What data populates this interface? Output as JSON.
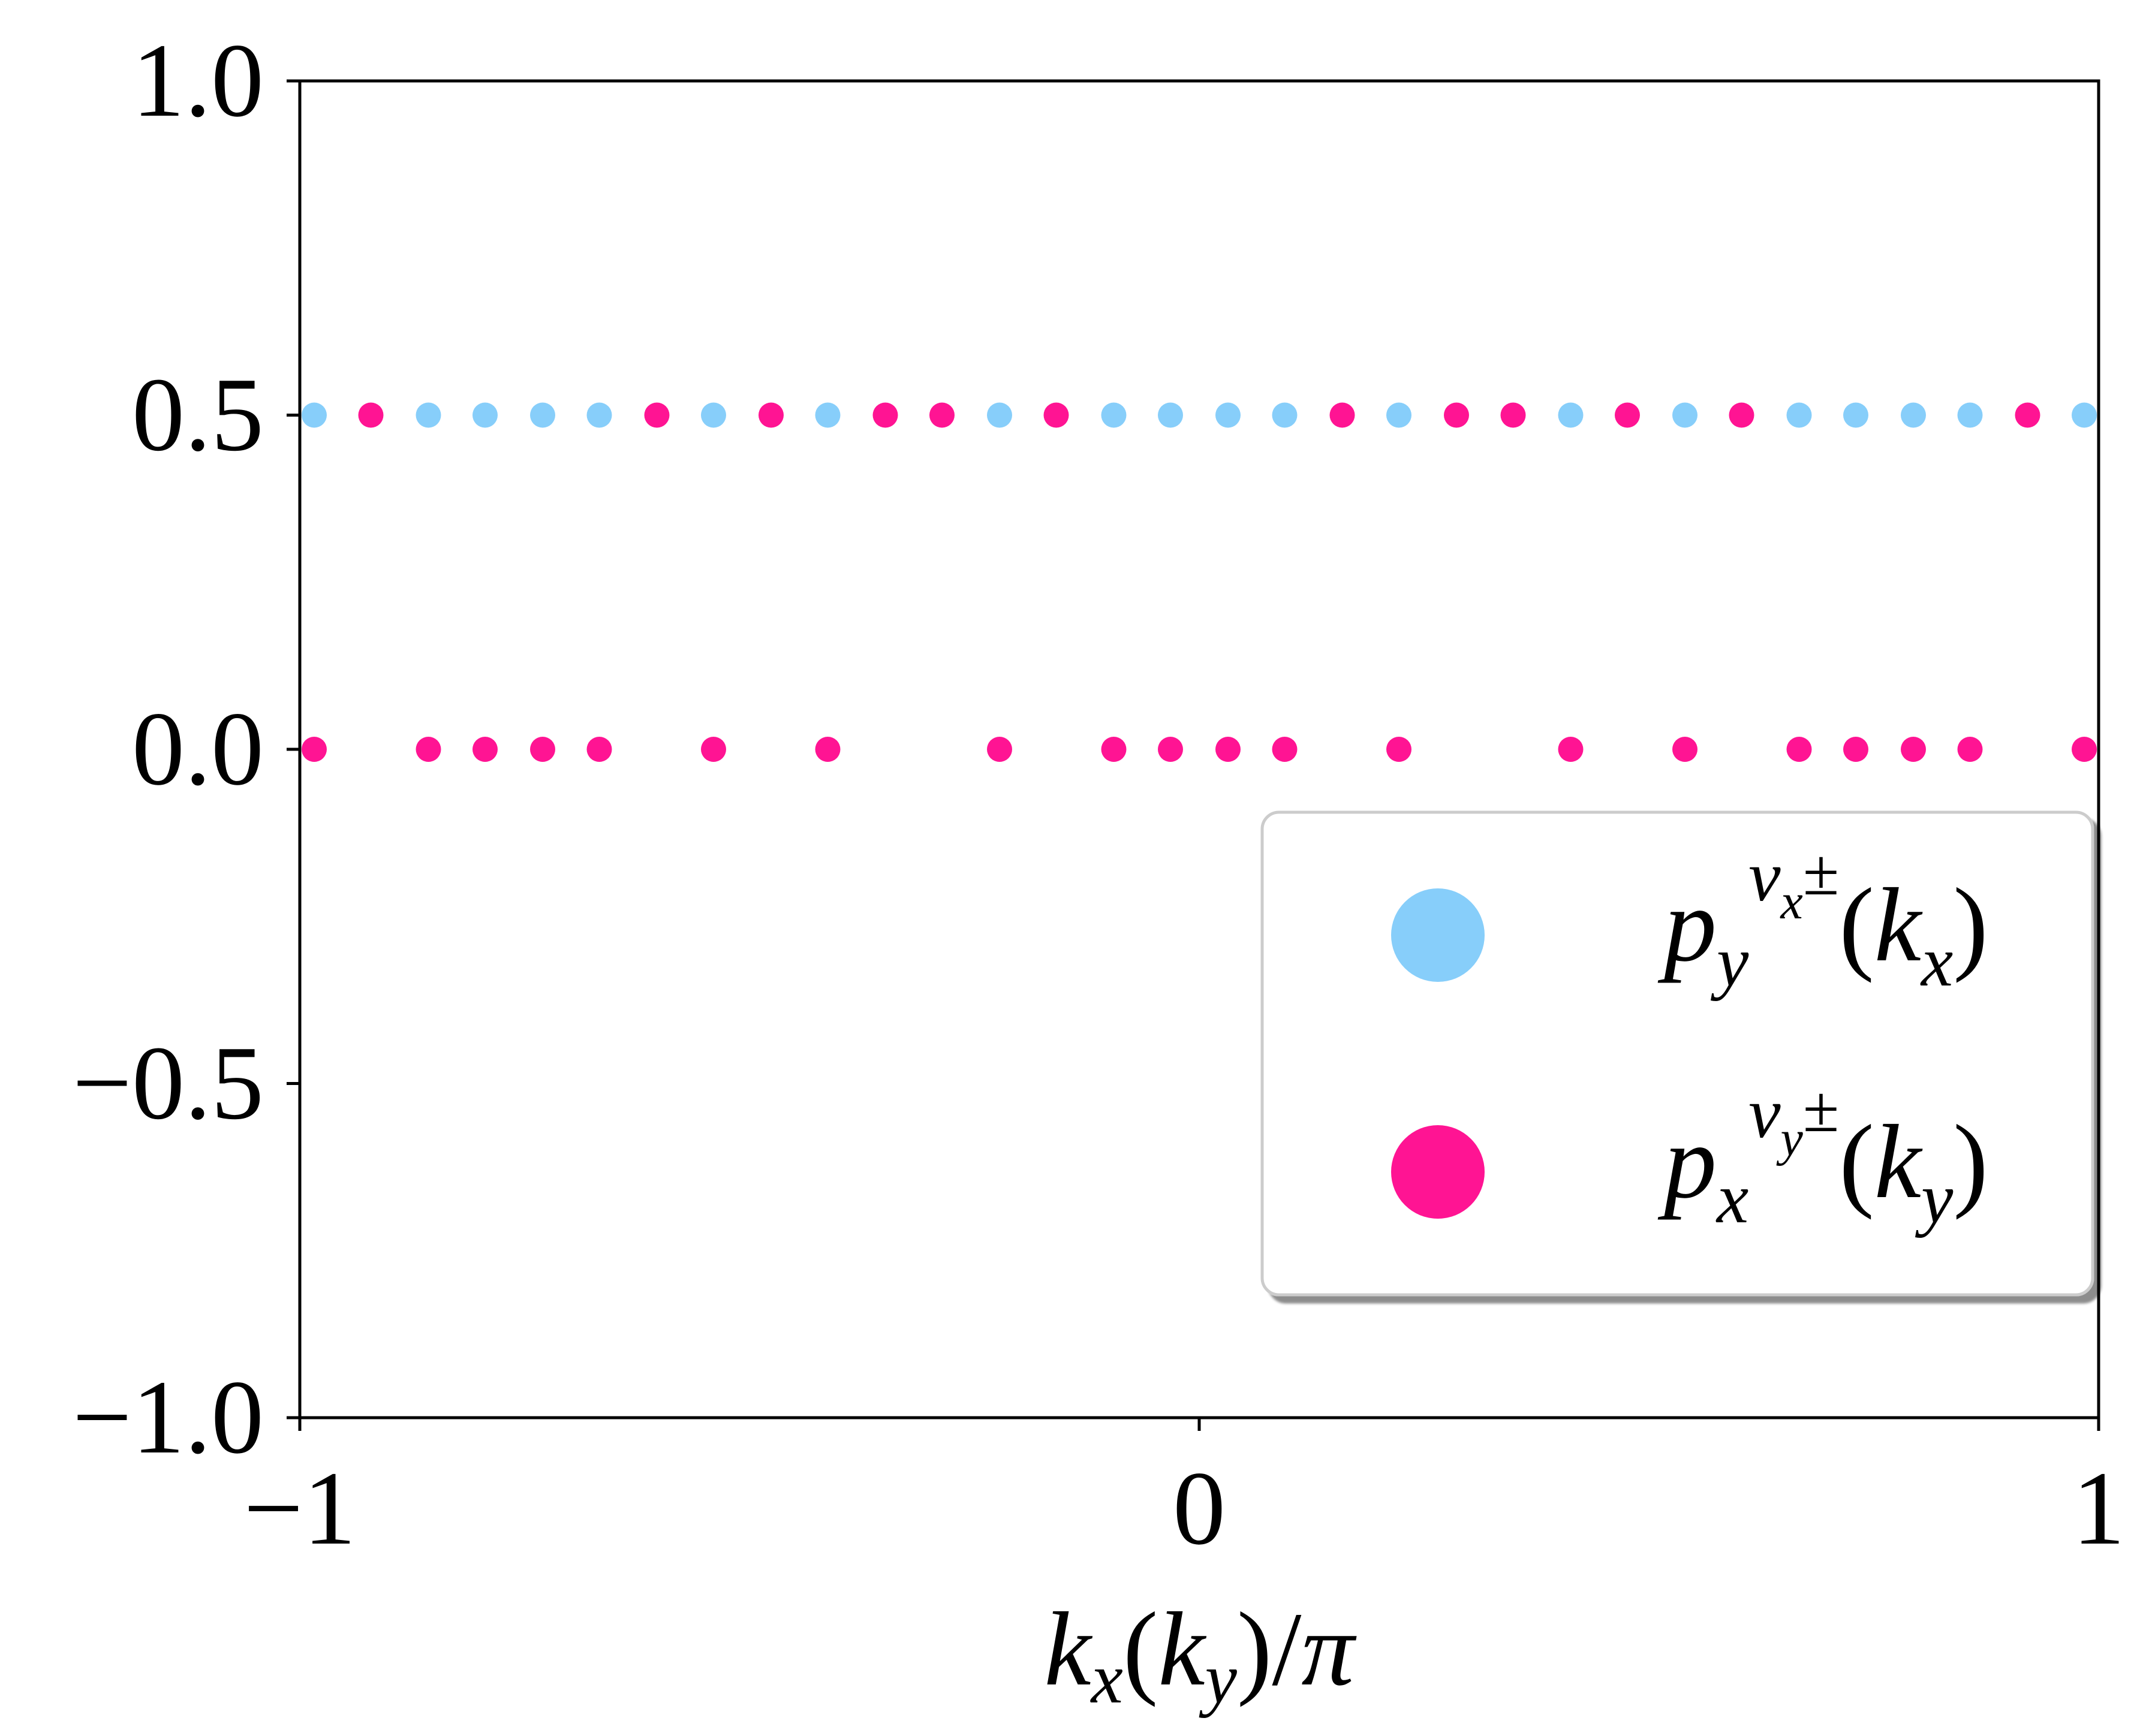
{
  "chart_data": {
    "type": "scatter",
    "title": "",
    "xlabel": "k_x(k_y)/π",
    "ylabel": "",
    "xlim": [
      -1,
      1
    ],
    "ylim": [
      -1.0,
      1.0
    ],
    "grid": false,
    "legend_position": "lower-right",
    "x_ticks": [
      -1,
      0,
      1
    ],
    "x_tick_labels": [
      "−1",
      "0",
      "1"
    ],
    "y_ticks": [
      1.0,
      0.5,
      0.0,
      -0.5,
      -1.0
    ],
    "y_tick_labels": [
      "1.0",
      "0.5",
      "0.0",
      "−0.5",
      "−1.0"
    ],
    "colors": {
      "series_0": "#87CEFA",
      "series_1": "#FF1493"
    },
    "series": [
      {
        "name": "p_y^{ν_x^±}(k_x)",
        "legend_html": {
          "main": "p",
          "sub": "y",
          "sup_main": "ν",
          "sup_sub": "x",
          "sup_tail": "±",
          "arg_open": "(k",
          "arg_sub": "x",
          "arg_close": ")"
        },
        "color": "#87CEFA",
        "points": [
          [
            -0.984,
            0.5
          ],
          [
            -0.857,
            0.5
          ],
          [
            -0.794,
            0.5
          ],
          [
            -0.73,
            0.5
          ],
          [
            -0.667,
            0.5
          ],
          [
            -0.54,
            0.5
          ],
          [
            -0.413,
            0.5
          ],
          [
            -0.222,
            0.5
          ],
          [
            -0.095,
            0.5
          ],
          [
            -0.032,
            0.5
          ],
          [
            0.032,
            0.5
          ],
          [
            0.095,
            0.5
          ],
          [
            0.222,
            0.5
          ],
          [
            0.413,
            0.5
          ],
          [
            0.54,
            0.5
          ],
          [
            0.667,
            0.5
          ],
          [
            0.73,
            0.5
          ],
          [
            0.794,
            0.5
          ],
          [
            0.857,
            0.5
          ],
          [
            0.984,
            0.5
          ]
        ]
      },
      {
        "name": "p_x^{ν_y^±}(k_y)",
        "legend_html": {
          "main": "p",
          "sub": "x",
          "sup_main": "ν",
          "sup_sub": "y",
          "sup_tail": "±",
          "arg_open": "(k",
          "arg_sub": "y",
          "arg_close": ")"
        },
        "color": "#FF1493",
        "points": [
          [
            -0.921,
            0.5
          ],
          [
            -0.603,
            0.5
          ],
          [
            -0.476,
            0.5
          ],
          [
            -0.349,
            0.5
          ],
          [
            -0.286,
            0.5
          ],
          [
            -0.159,
            0.5
          ],
          [
            0.159,
            0.5
          ],
          [
            0.286,
            0.5
          ],
          [
            0.349,
            0.5
          ],
          [
            0.476,
            0.5
          ],
          [
            0.603,
            0.5
          ],
          [
            0.921,
            0.5
          ],
          [
            -0.984,
            0.0
          ],
          [
            -0.857,
            0.0
          ],
          [
            -0.794,
            0.0
          ],
          [
            -0.73,
            0.0
          ],
          [
            -0.667,
            0.0
          ],
          [
            -0.54,
            0.0
          ],
          [
            -0.413,
            0.0
          ],
          [
            -0.222,
            0.0
          ],
          [
            -0.095,
            0.0
          ],
          [
            -0.032,
            0.0
          ],
          [
            0.032,
            0.0
          ],
          [
            0.095,
            0.0
          ],
          [
            0.222,
            0.0
          ],
          [
            0.413,
            0.0
          ],
          [
            0.54,
            0.0
          ],
          [
            0.667,
            0.0
          ],
          [
            0.73,
            0.0
          ],
          [
            0.794,
            0.0
          ],
          [
            0.857,
            0.0
          ],
          [
            0.984,
            0.0
          ]
        ]
      }
    ]
  }
}
